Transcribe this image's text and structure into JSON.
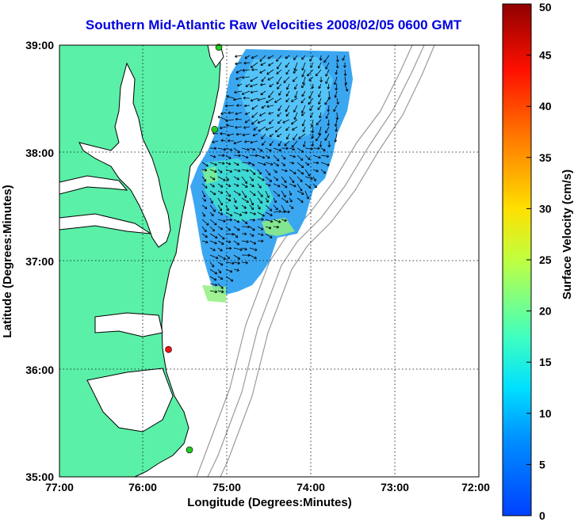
{
  "title": "Southern Mid-Atlantic Raw Velocities 2008/02/05 0600 GMT",
  "xaxis": {
    "label": "Longitude (Degrees:Minutes)",
    "range": [
      -77,
      -72
    ],
    "ticks": [
      {
        "value": -77,
        "label": "77:00"
      },
      {
        "value": -76,
        "label": "76:00"
      },
      {
        "value": -75,
        "label": "75:00"
      },
      {
        "value": -74,
        "label": "74:00"
      },
      {
        "value": -73,
        "label": "73:00"
      },
      {
        "value": -72,
        "label": "72:00"
      }
    ]
  },
  "yaxis": {
    "label": "Latitude (Degrees:Minutes)",
    "range": [
      35,
      39
    ],
    "ticks": [
      {
        "value": 39,
        "label": "39:00"
      },
      {
        "value": 38,
        "label": "38:00"
      },
      {
        "value": 37,
        "label": "37:00"
      },
      {
        "value": 36,
        "label": "36:00"
      },
      {
        "value": 35,
        "label": "35:00"
      }
    ]
  },
  "colorbar": {
    "label": "Surface Velocity (cm/s)",
    "range": [
      0,
      50
    ],
    "ticks": [
      0,
      5,
      10,
      15,
      20,
      25,
      30,
      35,
      40,
      45,
      50
    ],
    "colormap": "jet"
  },
  "colors": {
    "land": "#5af0a8",
    "ocean": "#ffffff",
    "title": "#0000e0",
    "coast": "#000000",
    "bathymetry": "#9a9a9a",
    "grid": "#000000"
  },
  "stations": [
    {
      "lon": -75.1,
      "lat": 38.98,
      "color": "#22cc22"
    },
    {
      "lon": -75.15,
      "lat": 38.22,
      "color": "#22cc22"
    },
    {
      "lon": -75.7,
      "lat": 36.18,
      "color": "#ee1111"
    },
    {
      "lon": -75.45,
      "lat": 35.25,
      "color": "#22cc22"
    }
  ],
  "grid": "dotted"
}
